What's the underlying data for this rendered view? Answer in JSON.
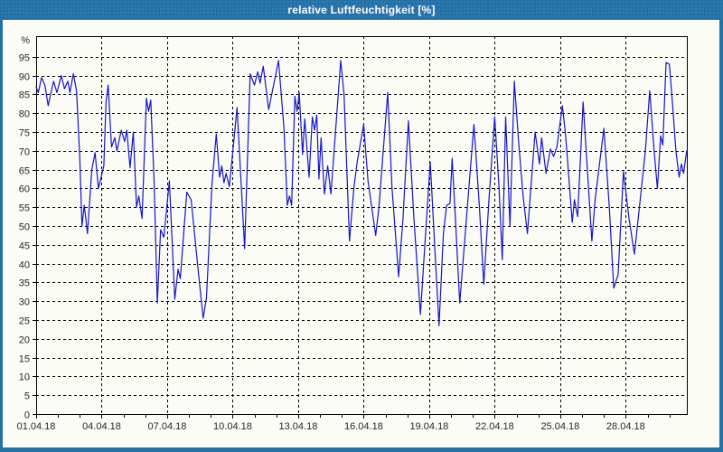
{
  "colors": {
    "frame": "#2471a8",
    "titlebar": "#2471a8",
    "title_text": "#ffffff",
    "plot_bg": "#fcfcf6",
    "grid": "#000000",
    "axis": "#000000",
    "label_text": "#26262e",
    "line": "#1414cc"
  },
  "chart_data": {
    "type": "line",
    "title": "relative Luftfeuchtigkeit [%]",
    "ylabel_unit": "%",
    "xlabel": "",
    "legend": "none",
    "grid_style": "dashed",
    "ylim": [
      0,
      100.5
    ],
    "xlim_days": [
      0,
      29.8
    ],
    "y_ticks": [
      0,
      5,
      10,
      15,
      20,
      25,
      30,
      35,
      40,
      45,
      50,
      55,
      60,
      65,
      70,
      75,
      80,
      85,
      90,
      95
    ],
    "x_minor_tick_every_days": 1,
    "x_ticks": [
      {
        "day": 0,
        "label": "01.04.18"
      },
      {
        "day": 3,
        "label": "04.04.18"
      },
      {
        "day": 6,
        "label": "07.04.18"
      },
      {
        "day": 9,
        "label": "10.04.18"
      },
      {
        "day": 12,
        "label": "13.04.18"
      },
      {
        "day": 15,
        "label": "16.04.18"
      },
      {
        "day": 18,
        "label": "19.04.18"
      },
      {
        "day": 21,
        "label": "22.04.18"
      },
      {
        "day": 24,
        "label": "25.04.18"
      },
      {
        "day": 27,
        "label": "28.04.18"
      }
    ],
    "series": [
      {
        "points": [
          [
            0.0,
            87
          ],
          [
            0.1,
            85.5
          ],
          [
            0.25,
            89.5
          ],
          [
            0.4,
            87.5
          ],
          [
            0.55,
            82
          ],
          [
            0.7,
            86
          ],
          [
            0.8,
            88.5
          ],
          [
            0.95,
            85.5
          ],
          [
            1.15,
            90
          ],
          [
            1.3,
            86.5
          ],
          [
            1.45,
            88.5
          ],
          [
            1.55,
            85.5
          ],
          [
            1.7,
            90.5
          ],
          [
            1.85,
            86
          ],
          [
            2.0,
            68
          ],
          [
            2.1,
            50
          ],
          [
            2.2,
            55.5
          ],
          [
            2.35,
            48
          ],
          [
            2.55,
            65
          ],
          [
            2.7,
            69.5
          ],
          [
            2.85,
            60
          ],
          [
            3.1,
            66
          ],
          [
            3.2,
            83
          ],
          [
            3.3,
            87.5
          ],
          [
            3.45,
            71
          ],
          [
            3.6,
            73.5
          ],
          [
            3.7,
            70
          ],
          [
            3.9,
            75.5
          ],
          [
            4.05,
            72.5
          ],
          [
            4.15,
            75.5
          ],
          [
            4.3,
            65.5
          ],
          [
            4.45,
            75
          ],
          [
            4.6,
            55
          ],
          [
            4.7,
            58
          ],
          [
            4.85,
            52
          ],
          [
            5.05,
            84
          ],
          [
            5.15,
            80.5
          ],
          [
            5.25,
            83.5
          ],
          [
            5.4,
            62
          ],
          [
            5.55,
            29.5
          ],
          [
            5.7,
            49
          ],
          [
            5.85,
            47
          ],
          [
            6.1,
            62
          ],
          [
            6.35,
            30.5
          ],
          [
            6.5,
            38.5
          ],
          [
            6.6,
            36
          ],
          [
            6.9,
            59
          ],
          [
            7.1,
            57
          ],
          [
            7.45,
            36.5
          ],
          [
            7.65,
            25.5
          ],
          [
            7.8,
            31
          ],
          [
            8.05,
            61
          ],
          [
            8.25,
            74.5
          ],
          [
            8.4,
            63
          ],
          [
            8.5,
            66
          ],
          [
            8.6,
            61.5
          ],
          [
            8.7,
            64
          ],
          [
            8.85,
            60.5
          ],
          [
            9.2,
            81.5
          ],
          [
            9.55,
            44
          ],
          [
            9.8,
            90.5
          ],
          [
            10.0,
            87.5
          ],
          [
            10.15,
            91
          ],
          [
            10.25,
            88
          ],
          [
            10.4,
            92.5
          ],
          [
            10.65,
            81
          ],
          [
            11.1,
            94
          ],
          [
            11.35,
            76
          ],
          [
            11.5,
            55.5
          ],
          [
            11.6,
            58
          ],
          [
            11.7,
            55.5
          ],
          [
            11.85,
            84.5
          ],
          [
            11.95,
            80.5
          ],
          [
            12.05,
            85.5
          ],
          [
            12.2,
            69
          ],
          [
            12.3,
            78.5
          ],
          [
            12.5,
            63
          ],
          [
            12.65,
            79
          ],
          [
            12.75,
            75.5
          ],
          [
            12.85,
            79.5
          ],
          [
            12.95,
            62.5
          ],
          [
            13.05,
            73.5
          ],
          [
            13.2,
            58.5
          ],
          [
            13.35,
            66
          ],
          [
            13.5,
            58.5
          ],
          [
            13.95,
            94
          ],
          [
            14.1,
            85
          ],
          [
            14.35,
            46
          ],
          [
            14.55,
            60
          ],
          [
            14.7,
            67
          ],
          [
            14.85,
            72
          ],
          [
            15.0,
            77
          ],
          [
            15.2,
            62
          ],
          [
            15.55,
            47.5
          ],
          [
            15.7,
            55
          ],
          [
            16.1,
            85.5
          ],
          [
            16.3,
            60
          ],
          [
            16.6,
            36.5
          ],
          [
            16.8,
            52
          ],
          [
            17.05,
            78
          ],
          [
            17.3,
            52
          ],
          [
            17.6,
            26.5
          ],
          [
            17.8,
            45
          ],
          [
            18.05,
            67
          ],
          [
            18.25,
            45
          ],
          [
            18.45,
            23.5
          ],
          [
            18.65,
            48
          ],
          [
            18.8,
            55.5
          ],
          [
            18.95,
            56
          ],
          [
            19.05,
            68
          ],
          [
            19.2,
            52
          ],
          [
            19.4,
            29.5
          ],
          [
            19.65,
            48
          ],
          [
            20.05,
            77
          ],
          [
            20.3,
            55
          ],
          [
            20.5,
            34.5
          ],
          [
            20.75,
            58
          ],
          [
            21.0,
            79
          ],
          [
            21.2,
            60
          ],
          [
            21.35,
            41
          ],
          [
            21.5,
            79
          ],
          [
            21.7,
            50
          ],
          [
            21.9,
            88.5
          ],
          [
            22.1,
            72
          ],
          [
            22.3,
            58
          ],
          [
            22.5,
            48
          ],
          [
            22.85,
            75
          ],
          [
            23.05,
            66.5
          ],
          [
            23.15,
            73.5
          ],
          [
            23.35,
            64
          ],
          [
            23.55,
            70.5
          ],
          [
            23.7,
            68.5
          ],
          [
            23.85,
            71
          ],
          [
            24.1,
            82
          ],
          [
            24.25,
            74
          ],
          [
            24.55,
            51
          ],
          [
            24.65,
            57
          ],
          [
            24.8,
            52.5
          ],
          [
            25.05,
            83
          ],
          [
            25.45,
            46
          ],
          [
            25.6,
            57
          ],
          [
            26.0,
            76
          ],
          [
            26.25,
            55
          ],
          [
            26.45,
            33.5
          ],
          [
            26.65,
            37
          ],
          [
            26.9,
            64.5
          ],
          [
            27.15,
            52
          ],
          [
            27.4,
            42.5
          ],
          [
            27.9,
            70
          ],
          [
            28.1,
            86
          ],
          [
            28.3,
            70
          ],
          [
            28.45,
            60
          ],
          [
            28.6,
            74
          ],
          [
            28.7,
            71.5
          ],
          [
            28.85,
            93.5
          ],
          [
            29.0,
            93
          ],
          [
            29.15,
            82
          ],
          [
            29.3,
            70
          ],
          [
            29.45,
            63
          ],
          [
            29.55,
            66.5
          ],
          [
            29.65,
            64
          ],
          [
            29.79,
            70
          ]
        ]
      }
    ]
  }
}
